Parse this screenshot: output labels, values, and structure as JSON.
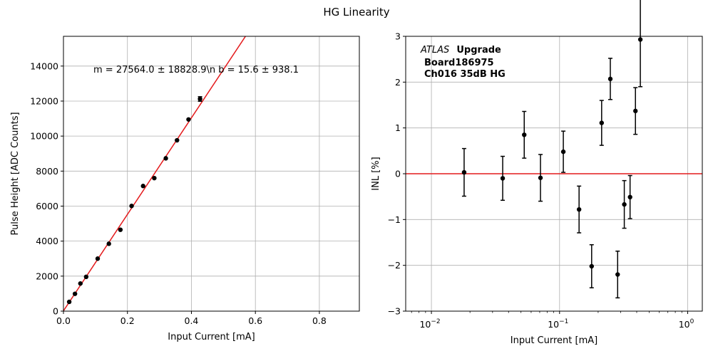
{
  "figure": {
    "title": "HG Linearity"
  },
  "chart_data": [
    {
      "type": "scatter",
      "xlabel": "Input Current [mA]",
      "ylabel": "Pulse Height [ADC Counts]",
      "xlim": [
        0,
        0.925
      ],
      "ylim": [
        0,
        15700
      ],
      "xticks": [
        0.0,
        0.2,
        0.4,
        0.6,
        0.8
      ],
      "xtick_labels": [
        "0.0",
        "0.2",
        "0.4",
        "0.6",
        "0.8"
      ],
      "yticks": [
        0,
        2000,
        4000,
        6000,
        8000,
        10000,
        12000,
        14000
      ],
      "ytick_labels": [
        "0",
        "2000",
        "4000",
        "6000",
        "8000",
        "10000",
        "12000",
        "14000"
      ],
      "grid": true,
      "annotation": "m = 27564.0 ± 18828.9\\n b = 15.6 ± 938.1",
      "fit_line": {
        "slope": 27564.0,
        "intercept": 15.6,
        "color": "#e41a1c"
      },
      "series": [
        {
          "marker_color": "#000000",
          "x": [
            0.018,
            0.036,
            0.053,
            0.071,
            0.107,
            0.142,
            0.178,
            0.213,
            0.249,
            0.284,
            0.32,
            0.355,
            0.391,
            0.427
          ],
          "y": [
            530,
            990,
            1580,
            1960,
            3000,
            3850,
            4650,
            6010,
            7150,
            7600,
            8730,
            9760,
            10950,
            12120
          ],
          "yerr": [
            0,
            0,
            0,
            0,
            0,
            0,
            0,
            0,
            0,
            0,
            0,
            0,
            0,
            130
          ]
        }
      ]
    },
    {
      "type": "scatter",
      "xlabel": "Input Current [mA]",
      "ylabel": "INL [%]",
      "xscale": "log",
      "xlim": [
        0.0063,
        1.3
      ],
      "ylim": [
        -3,
        3
      ],
      "xticks": [
        0.01,
        0.1,
        1
      ],
      "xtick_labels": [
        {
          "base": "10",
          "exp": "−2"
        },
        {
          "base": "10",
          "exp": "−1"
        },
        {
          "base": "10",
          "exp": "0"
        }
      ],
      "yticks": [
        -3,
        -2,
        -1,
        0,
        1,
        2,
        3
      ],
      "ytick_labels": [
        "−3",
        "−2",
        "−1",
        "0",
        "1",
        "2",
        "3"
      ],
      "grid": true,
      "reference_line": {
        "y": 0,
        "color": "#e41a1c"
      },
      "label_block": {
        "experiment": "ATLAS",
        "tag": "Upgrade",
        "line2": "Board186975",
        "line3": "Ch016 35dB HG"
      },
      "series": [
        {
          "marker_color": "#000000",
          "x": [
            0.018,
            0.036,
            0.053,
            0.071,
            0.107,
            0.142,
            0.178,
            0.213,
            0.249,
            0.284,
            0.32,
            0.355,
            0.391,
            0.427
          ],
          "y": [
            0.03,
            -0.1,
            0.85,
            -0.09,
            0.48,
            -0.78,
            -2.02,
            1.11,
            2.07,
            -2.2,
            -0.67,
            -0.51,
            1.37,
            2.93
          ],
          "yerr": [
            0.52,
            0.48,
            0.51,
            0.51,
            0.45,
            0.51,
            0.47,
            0.49,
            0.45,
            0.51,
            0.52,
            0.47,
            0.51,
            1.03
          ]
        }
      ]
    }
  ]
}
